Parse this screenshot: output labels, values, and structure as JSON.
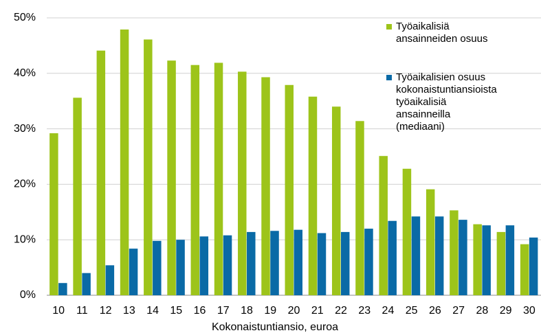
{
  "chart_data": {
    "type": "bar",
    "x_label": "Kokonaistuntiansio, euroa",
    "categories": [
      "10",
      "11",
      "12",
      "13",
      "14",
      "15",
      "16",
      "17",
      "18",
      "19",
      "20",
      "21",
      "22",
      "23",
      "24",
      "25",
      "26",
      "27",
      "28",
      "29",
      "30"
    ],
    "series": [
      {
        "name": "Työaikalisiä ansainneiden osuus",
        "color": "#9dc41a",
        "values": [
          29.2,
          35.6,
          44.1,
          47.9,
          46.1,
          42.3,
          41.5,
          41.9,
          40.3,
          39.3,
          37.9,
          35.8,
          34.0,
          31.4,
          25.1,
          22.8,
          19.1,
          15.3,
          12.8,
          11.4,
          9.2
        ]
      },
      {
        "name": "Työaikalisien osuus kokonaistuntiansioista työaikalisiä ansainneilla (mediaani)",
        "color": "#0a6aa6",
        "values": [
          2.2,
          4.0,
          5.4,
          8.4,
          9.8,
          10.0,
          10.6,
          10.8,
          11.4,
          11.6,
          11.8,
          11.2,
          11.4,
          12.0,
          13.4,
          14.2,
          14.2,
          13.6,
          12.6,
          12.6,
          10.4
        ]
      }
    ],
    "ylim": [
      0,
      50
    ],
    "yticks": [
      {
        "value": 0,
        "label": "0%"
      },
      {
        "value": 10,
        "label": "10%"
      },
      {
        "value": 20,
        "label": "20%"
      },
      {
        "value": 30,
        "label": "30%"
      },
      {
        "value": 40,
        "label": "40%"
      },
      {
        "value": 50,
        "label": "50%"
      }
    ],
    "grid": true
  }
}
